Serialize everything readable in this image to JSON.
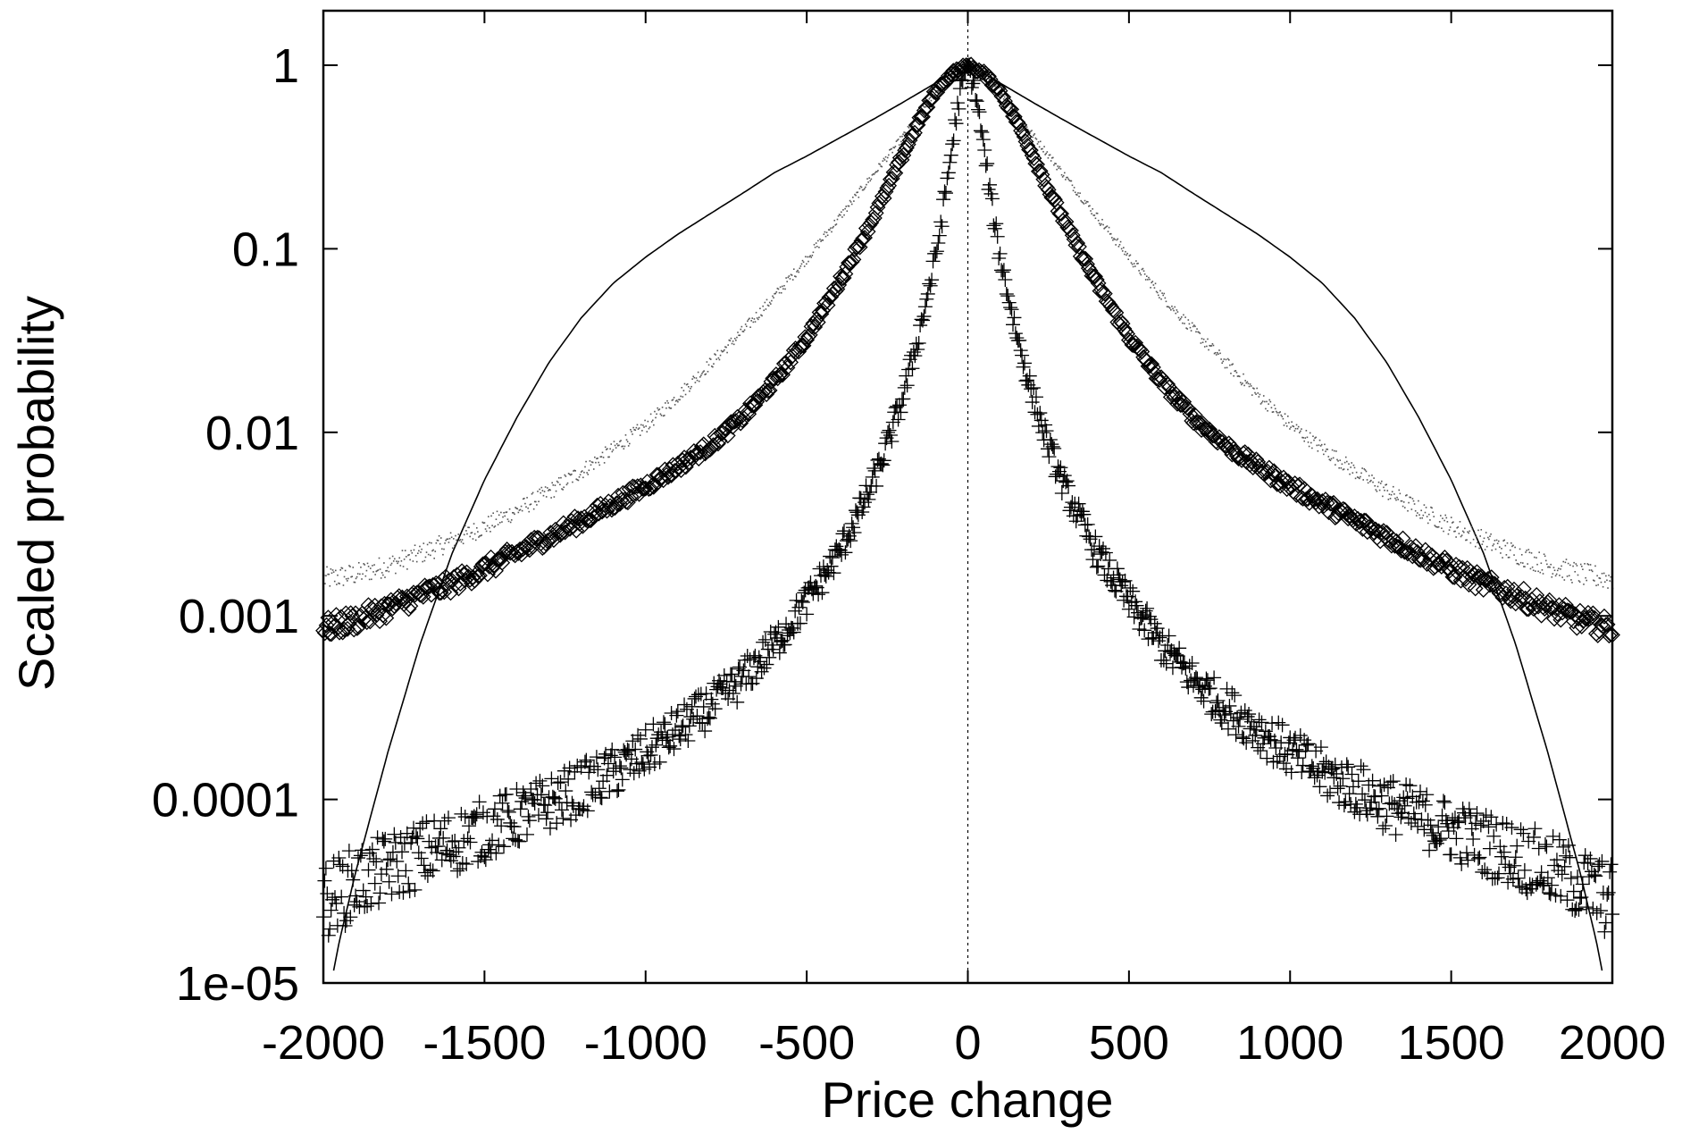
{
  "chart_data": {
    "type": "scatter",
    "title": "",
    "xlabel": "Price change",
    "ylabel": "Scaled probability",
    "xlim": [
      -2000,
      2000
    ],
    "ylim": [
      1e-05,
      1
    ],
    "yscale": "log",
    "grid": false,
    "legend": "none",
    "x_ticks": [
      {
        "value": -2000,
        "label": "-2000"
      },
      {
        "value": -1500,
        "label": "-1500"
      },
      {
        "value": -1000,
        "label": "-1000"
      },
      {
        "value": -500,
        "label": "-500"
      },
      {
        "value": 0,
        "label": "0"
      },
      {
        "value": 500,
        "label": "500"
      },
      {
        "value": 1000,
        "label": "1000"
      },
      {
        "value": 1500,
        "label": "1500"
      },
      {
        "value": 2000,
        "label": "2000"
      }
    ],
    "y_ticks": [
      {
        "value": 1,
        "label": "1"
      },
      {
        "value": 0.1,
        "label": "0.1"
      },
      {
        "value": 0.01,
        "label": "0.01"
      },
      {
        "value": 0.001,
        "label": "0.001"
      },
      {
        "value": 0.0001,
        "label": "0.0001"
      },
      {
        "value": 1e-05,
        "label": "1e-05"
      }
    ],
    "reference_line": {
      "x": 0,
      "style": "dotted"
    },
    "series": [
      {
        "marker": "line",
        "color": "#000000",
        "x": [
          0,
          50,
          100,
          150,
          200,
          300,
          400,
          500,
          600,
          700,
          800,
          900,
          1000,
          1100,
          1200,
          1300,
          1400,
          1500,
          1600,
          1700,
          1800,
          1900,
          1950,
          2000
        ],
        "y": [
          1,
          0.9,
          0.8,
          0.71,
          0.63,
          0.5,
          0.4,
          0.32,
          0.26,
          0.2,
          0.155,
          0.12,
          0.09,
          0.065,
          0.042,
          0.024,
          0.012,
          0.0055,
          0.0022,
          0.0007,
          0.00018,
          4e-05,
          1.7e-05,
          6e-06
        ]
      },
      {
        "marker": "dot",
        "color": "#555555",
        "x": [
          0,
          50,
          100,
          150,
          200,
          300,
          400,
          500,
          600,
          700,
          800,
          900,
          1000,
          1100,
          1200,
          1300,
          1400,
          1500,
          1600,
          1700,
          1800,
          1900,
          2000
        ],
        "y": [
          1,
          0.88,
          0.72,
          0.55,
          0.42,
          0.25,
          0.15,
          0.09,
          0.056,
          0.036,
          0.024,
          0.016,
          0.011,
          0.0082,
          0.0062,
          0.0048,
          0.0038,
          0.0031,
          0.0026,
          0.0022,
          0.0019,
          0.0017,
          0.0016
        ]
      },
      {
        "marker": "diamond",
        "color": "#000000",
        "x": [
          0,
          50,
          100,
          150,
          200,
          250,
          300,
          400,
          500,
          600,
          700,
          800,
          900,
          1000,
          1100,
          1200,
          1300,
          1400,
          1500,
          1600,
          1700,
          1800,
          1900,
          2000
        ],
        "y": [
          1,
          0.9,
          0.72,
          0.5,
          0.33,
          0.21,
          0.14,
          0.065,
          0.033,
          0.019,
          0.012,
          0.0085,
          0.0065,
          0.0051,
          0.0041,
          0.0033,
          0.0027,
          0.0022,
          0.0018,
          0.0015,
          0.0013,
          0.0011,
          0.00095,
          0.00085
        ]
      },
      {
        "marker": "plus",
        "color": "#000000",
        "x": [
          0,
          25,
          50,
          75,
          100,
          150,
          200,
          250,
          300,
          400,
          500,
          600,
          700,
          800,
          900,
          1000,
          1100,
          1200,
          1300,
          1400,
          1500,
          1600,
          1700,
          1800,
          1900,
          2000
        ],
        "y": [
          1,
          0.7,
          0.35,
          0.17,
          0.09,
          0.035,
          0.016,
          0.0085,
          0.005,
          0.0022,
          0.0012,
          0.0007,
          0.00045,
          0.00032,
          0.00024,
          0.00018,
          0.00014,
          0.000115,
          9.5e-05,
          8e-05,
          6.8e-05,
          5.8e-05,
          5e-05,
          4.2e-05,
          3.5e-05,
          2.8e-05
        ]
      }
    ]
  }
}
